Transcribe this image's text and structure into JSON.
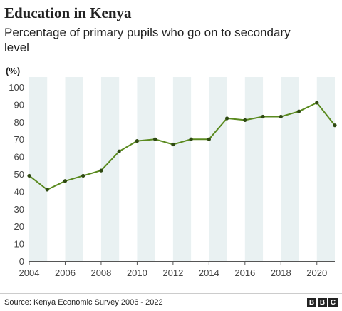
{
  "header": {
    "title": "Education in Kenya",
    "subtitle": "Percentage of primary pupils who go on to secondary level",
    "unit": "(%)"
  },
  "footer": {
    "source": "Source: Kenya Economic Survey 2006 - 2022",
    "logo": [
      "B",
      "B",
      "C"
    ]
  },
  "colors": {
    "line": "#5a8a1f",
    "band": "#e9f1f2",
    "axis": "#555555"
  },
  "chart_data": {
    "type": "line",
    "title": "Education in Kenya",
    "subtitle": "Percentage of primary pupils who go on to secondary level",
    "ylabel": "(%)",
    "xlim": [
      2004,
      2021
    ],
    "ylim": [
      0,
      100
    ],
    "xticks": [
      2004,
      2006,
      2008,
      2010,
      2012,
      2014,
      2016,
      2018,
      2020
    ],
    "yticks": [
      0,
      10,
      20,
      30,
      40,
      50,
      60,
      70,
      80,
      90,
      100
    ],
    "grid": "alternating vertical bands",
    "series": [
      {
        "x": [
          2004,
          2005,
          2006,
          2007,
          2008,
          2009,
          2010,
          2011,
          2012,
          2013,
          2014,
          2015,
          2016,
          2017,
          2018,
          2019,
          2020,
          2021
        ],
        "values": [
          49,
          41,
          46,
          49,
          52,
          63,
          69,
          70,
          67,
          70,
          70,
          82,
          81,
          83,
          83,
          86,
          91,
          78
        ]
      }
    ]
  }
}
